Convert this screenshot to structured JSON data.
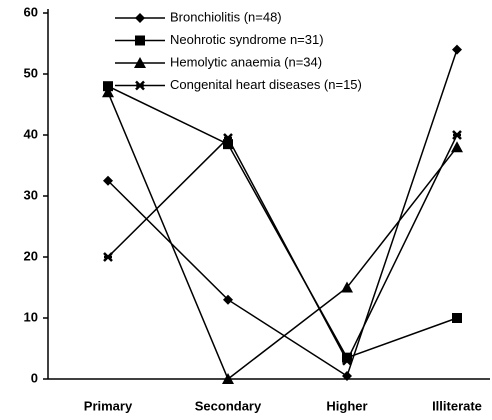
{
  "chart_data": {
    "type": "line",
    "categories": [
      "Primary",
      "Secondary",
      "Higher",
      "Illiterate"
    ],
    "series": [
      {
        "name": "Bronchiolitis (n=48)",
        "color": "#000000",
        "marker": "diamond",
        "values": [
          32.5,
          13,
          0.5,
          54
        ]
      },
      {
        "name": "Neohrotic syndrome n=31)",
        "color": "#000000",
        "marker": "square",
        "values": [
          48,
          38.5,
          3.5,
          10
        ]
      },
      {
        "name": "Hemolytic anaemia (n=34)",
        "color": "#000000",
        "marker": "triangle",
        "values": [
          47,
          0,
          15,
          38
        ]
      },
      {
        "name": "Congenital heart diseases (n=15)",
        "color": "#000000",
        "marker": "star",
        "values": [
          20,
          39.5,
          3,
          40
        ]
      }
    ],
    "ylim": [
      0,
      60
    ],
    "yticks": [
      0,
      10,
      20,
      30,
      40,
      50,
      60
    ],
    "grid": false,
    "legend": "top"
  }
}
